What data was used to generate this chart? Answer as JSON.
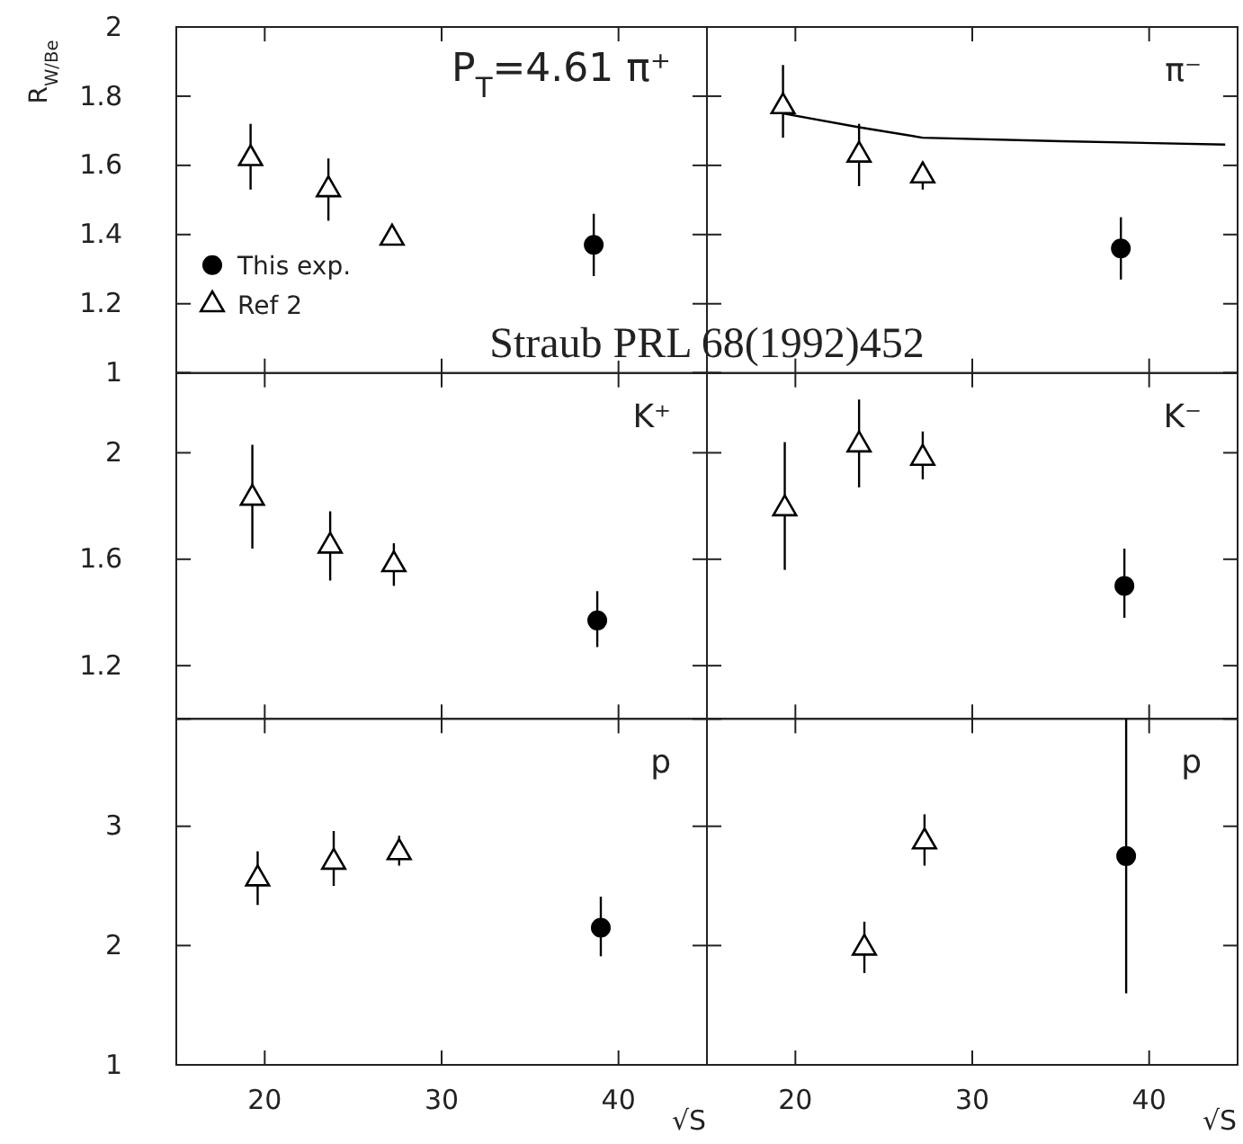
{
  "chart_data": [
    {
      "type": "scatter",
      "title": "P$_{T}$=4.61 π⁺",
      "ylabel": "R$_{W/Be}$",
      "legend": "bottom left",
      "tick_labels": "y",
      "annotations": [
        "Straub PRL 68(1992)452"
      ],
      "xlim": [
        15,
        45
      ],
      "xticks": [
        20,
        30,
        40
      ],
      "ylim": [
        1,
        2
      ],
      "yticks": [
        1,
        1.2,
        1.4,
        1.6,
        1.8,
        2
      ],
      "series": [
        {
          "name": "This exp.",
          "color": "#000000",
          "marker": "circle",
          "x": [
            38.6
          ],
          "values": [
            1.37
          ],
          "errors": [
            [
              1.28,
              1.46
            ]
          ]
        },
        {
          "name": "Ref 2",
          "color": "#000000",
          "marker": "triangle",
          "x": [
            19.2,
            23.6,
            27.2
          ],
          "values": [
            1.62,
            1.53,
            1.39
          ],
          "errors": [
            [
              1.53,
              1.72
            ],
            [
              1.44,
              1.62
            ],
            null
          ]
        }
      ]
    },
    {
      "type": "scatter",
      "title": "π⁻",
      "tick_labels": false,
      "xlim": [
        15,
        45
      ],
      "xticks": [
        20,
        30,
        40
      ],
      "ylim": [
        1,
        2
      ],
      "yticks": [
        1,
        1.2,
        1.4,
        1.6,
        1.8,
        2
      ],
      "series": [
        {
          "color": "#000000",
          "marker": "circle",
          "x": [
            38.4
          ],
          "values": [
            1.36
          ],
          "errors": [
            [
              1.27,
              1.45
            ]
          ]
        },
        {
          "color": "#000000",
          "marker": "triangle",
          "x": [
            19.3,
            23.6,
            27.2
          ],
          "values": [
            1.77,
            1.63,
            1.57
          ],
          "errors": [
            [
              1.68,
              1.89
            ],
            [
              1.54,
              1.72
            ],
            [
              1.53,
              1.61
            ]
          ]
        },
        {
          "type": "line",
          "color": "#000000",
          "marker": "none",
          "line_style": "solid",
          "x": [
            19.3,
            23.6,
            27.2,
            35,
            44.3
          ],
          "values": [
            1.75,
            1.71,
            1.68,
            1.67,
            1.66
          ]
        }
      ]
    },
    {
      "type": "scatter",
      "title": "K⁺",
      "tick_labels": "y",
      "xlim": [
        15,
        45
      ],
      "xticks": [
        20,
        30,
        40
      ],
      "ylim": [
        1,
        2.3
      ],
      "yticks": [
        1.2,
        1.6,
        2
      ],
      "series": [
        {
          "color": "#000000",
          "marker": "circle",
          "x": [
            38.8
          ],
          "values": [
            1.37
          ],
          "errors": [
            [
              1.27,
              1.48
            ]
          ]
        },
        {
          "color": "#000000",
          "marker": "triangle",
          "x": [
            19.3,
            23.7,
            27.3
          ],
          "values": [
            1.83,
            1.65,
            1.58
          ],
          "errors": [
            [
              1.64,
              2.03
            ],
            [
              1.52,
              1.78
            ],
            [
              1.5,
              1.66
            ]
          ]
        }
      ]
    },
    {
      "type": "scatter",
      "title": "K⁻",
      "tick_labels": false,
      "xlim": [
        15,
        45
      ],
      "xticks": [
        20,
        30,
        40
      ],
      "ylim": [
        1,
        2.3
      ],
      "yticks": [
        1.2,
        1.6,
        2
      ],
      "series": [
        {
          "color": "#000000",
          "marker": "circle",
          "x": [
            38.6
          ],
          "values": [
            1.5
          ],
          "errors": [
            [
              1.38,
              1.64
            ]
          ]
        },
        {
          "color": "#000000",
          "marker": "triangle",
          "x": [
            19.4,
            23.6,
            27.2
          ],
          "values": [
            1.79,
            2.03,
            1.98
          ],
          "errors": [
            [
              1.56,
              2.04
            ],
            [
              1.87,
              2.2
            ],
            [
              1.9,
              2.08
            ]
          ]
        }
      ]
    },
    {
      "type": "scatter",
      "title": "p",
      "xlabel": "√S",
      "xlim": [
        15,
        45
      ],
      "xticks": [
        20,
        30,
        40
      ],
      "ylim": [
        1,
        3.9
      ],
      "yticks": [
        1,
        2,
        3
      ],
      "series": [
        {
          "color": "#000000",
          "marker": "circle",
          "x": [
            39
          ],
          "values": [
            2.15
          ],
          "errors": [
            [
              1.91,
              2.41
            ]
          ]
        },
        {
          "color": "#000000",
          "marker": "triangle",
          "x": [
            19.6,
            23.9,
            27.6
          ],
          "values": [
            2.56,
            2.7,
            2.78
          ],
          "errors": [
            [
              2.34,
              2.79
            ],
            [
              2.5,
              2.96
            ],
            [
              2.67,
              2.92
            ]
          ]
        }
      ]
    },
    {
      "type": "scatter",
      "title": "p",
      "xlabel": "√S",
      "tick_labels": "x",
      "xlim": [
        15,
        45
      ],
      "xticks": [
        20,
        30,
        40
      ],
      "ylim": [
        1,
        3.9
      ],
      "yticks": [
        1,
        2,
        3
      ],
      "series": [
        {
          "color": "#000000",
          "marker": "circle",
          "x": [
            38.7
          ],
          "values": [
            2.75
          ],
          "errors": [
            [
              1.6,
              3.9
            ]
          ]
        },
        {
          "color": "#000000",
          "marker": "triangle",
          "x": [
            23.9,
            27.3
          ],
          "values": [
            1.98,
            2.87
          ],
          "errors": [
            [
              1.77,
              2.2
            ],
            [
              2.67,
              3.1
            ]
          ]
        }
      ]
    }
  ]
}
